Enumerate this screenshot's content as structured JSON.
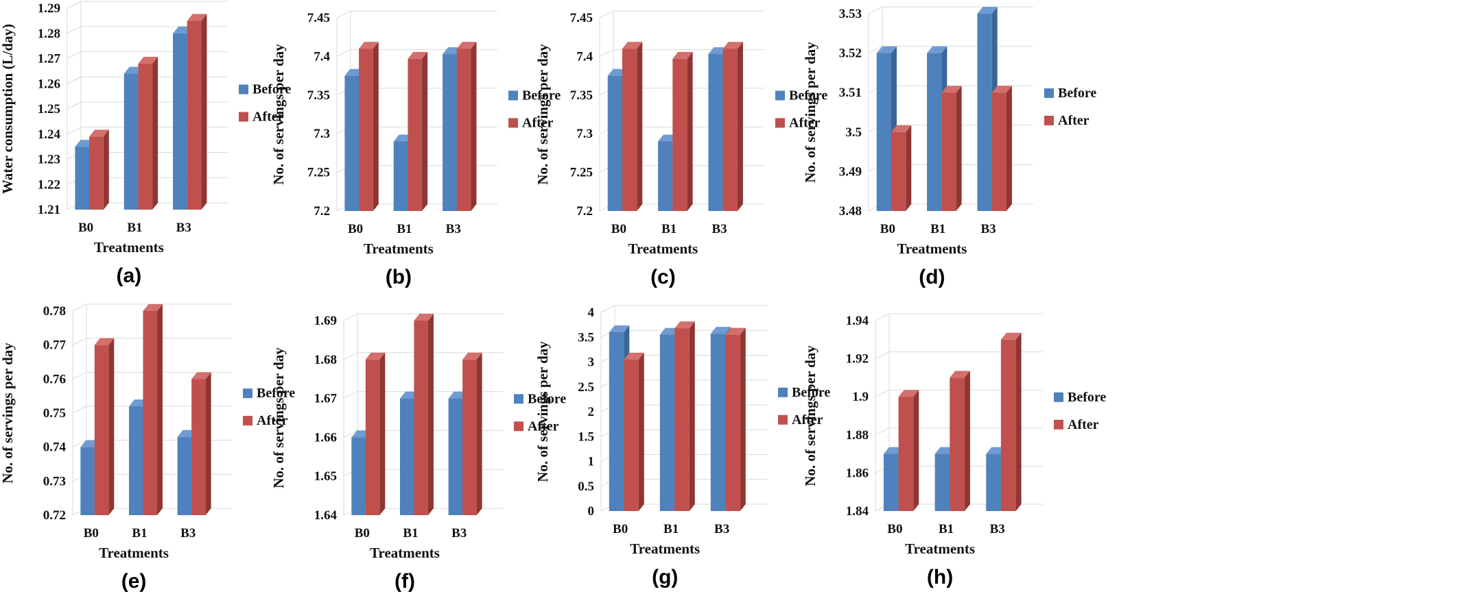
{
  "chart_data": [
    {
      "type": "bar",
      "panel": "(a)",
      "categories": [
        "B0",
        "B1",
        "B3"
      ],
      "series": [
        {
          "name": "Before",
          "values": [
            1.235,
            1.264,
            1.28
          ]
        },
        {
          "name": "After",
          "values": [
            1.239,
            1.268,
            1.285
          ]
        }
      ],
      "xlabel": "Treatments",
      "ylabel": "Water consumption (L/day)",
      "ylim": [
        1.21,
        1.29
      ],
      "yticks": [
        "1.21",
        "1.22",
        "1.23",
        "1.24",
        "1.25",
        "1.26",
        "1.27",
        "1.28",
        "1.29"
      ],
      "legend": "right"
    },
    {
      "type": "bar",
      "panel": "(b)",
      "categories": [
        "B0",
        "B1",
        "B3"
      ],
      "series": [
        {
          "name": "Before",
          "values": [
            7.375,
            7.29,
            7.403
          ]
        },
        {
          "name": "After",
          "values": [
            7.41,
            7.397,
            7.41
          ]
        }
      ],
      "xlabel": "Treatments",
      "ylabel": "No. of servings per day",
      "ylim": [
        7.2,
        7.45
      ],
      "yticks": [
        "7.2",
        "7.25",
        "7.3",
        "7.35",
        "7.4",
        "7.45"
      ],
      "legend": "right"
    },
    {
      "type": "bar",
      "panel": "(c)",
      "categories": [
        "B0",
        "B1",
        "B3"
      ],
      "series": [
        {
          "name": "Before",
          "values": [
            7.375,
            7.29,
            7.403
          ]
        },
        {
          "name": "After",
          "values": [
            7.41,
            7.397,
            7.41
          ]
        }
      ],
      "xlabel": "Treatments",
      "ylabel": "No. of servings per day",
      "ylim": [
        7.2,
        7.45
      ],
      "yticks": [
        "7.2",
        "7.25",
        "7.3",
        "7.35",
        "7.4",
        "7.45"
      ],
      "legend": "right"
    },
    {
      "type": "bar",
      "panel": "(d)",
      "categories": [
        "B0",
        "B1",
        "B3"
      ],
      "series": [
        {
          "name": "Before",
          "values": [
            3.52,
            3.52,
            3.53
          ]
        },
        {
          "name": "After",
          "values": [
            3.5,
            3.51,
            3.51
          ]
        }
      ],
      "xlabel": "Treatments",
      "ylabel": "No. of servings per day",
      "ylim": [
        3.48,
        3.53
      ],
      "yticks": [
        "3.48",
        "3.49",
        "3.5",
        "3.51",
        "3.52",
        "3.53"
      ],
      "legend": "right"
    },
    {
      "type": "bar",
      "panel": "(e)",
      "categories": [
        "B0",
        "B1",
        "B3"
      ],
      "series": [
        {
          "name": "Before",
          "values": [
            0.74,
            0.752,
            0.743
          ]
        },
        {
          "name": "After",
          "values": [
            0.77,
            0.78,
            0.76
          ]
        }
      ],
      "xlabel": "Treatments",
      "ylabel": "No. of servings per day",
      "ylim": [
        0.72,
        0.78
      ],
      "yticks": [
        "0.72",
        "0.73",
        "0.74",
        "0.75",
        "0.76",
        "0.77",
        "0.78"
      ],
      "legend": "right"
    },
    {
      "type": "bar",
      "panel": "(f)",
      "categories": [
        "B0",
        "B1",
        "B3"
      ],
      "series": [
        {
          "name": "Before",
          "values": [
            1.66,
            1.67,
            1.67
          ]
        },
        {
          "name": "After",
          "values": [
            1.68,
            1.69,
            1.68
          ]
        }
      ],
      "xlabel": "Treatments",
      "ylabel": "No. of servings per day",
      "ylim": [
        1.64,
        1.69
      ],
      "yticks": [
        "1.64",
        "1.65",
        "1.66",
        "1.67",
        "1.68",
        "1.69"
      ],
      "legend": "right"
    },
    {
      "type": "bar",
      "panel": "(g)",
      "categories": [
        "B0",
        "B1",
        "B3"
      ],
      "series": [
        {
          "name": "Before",
          "values": [
            3.6,
            3.55,
            3.57
          ]
        },
        {
          "name": "After",
          "values": [
            3.05,
            3.68,
            3.55
          ]
        }
      ],
      "xlabel": "Treatments",
      "ylabel": "No. of servings per day",
      "ylim": [
        0,
        4
      ],
      "yticks": [
        "0",
        "0.5",
        "1",
        "1.5",
        "2",
        "2.5",
        "3",
        "3.5",
        "4"
      ],
      "legend": "right"
    },
    {
      "type": "bar",
      "panel": "(h)",
      "categories": [
        "B0",
        "B1",
        "B3"
      ],
      "series": [
        {
          "name": "Before",
          "values": [
            1.87,
            1.87,
            1.87
          ]
        },
        {
          "name": "After",
          "values": [
            1.9,
            1.91,
            1.93
          ]
        }
      ],
      "xlabel": "Treatments",
      "ylabel": "No. of servings per day",
      "ylim": [
        1.84,
        1.94
      ],
      "yticks": [
        "1.84",
        "1.86",
        "1.88",
        "1.9",
        "1.92",
        "1.94"
      ],
      "legend": "right"
    }
  ],
  "colors": {
    "before": "#4f81bd",
    "before_side": "#3a6596",
    "before_top": "#6f9bd1",
    "after": "#c0504d",
    "after_side": "#8f3533",
    "after_top": "#d36f6c"
  }
}
